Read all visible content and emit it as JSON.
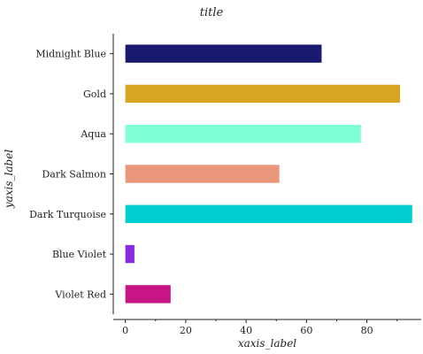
{
  "chart_data": {
    "type": "bar",
    "orientation": "horizontal",
    "title": "title",
    "xlabel": "xaxis_label",
    "ylabel": "yaxis_label",
    "xlim": [
      -4,
      98
    ],
    "xticks": [
      0,
      20,
      40,
      60,
      80
    ],
    "grid": false,
    "categories": [
      "Violet Red",
      "Blue Violet",
      "Dark Turquoise",
      "Dark Salmon",
      "Aqua",
      "Gold",
      "Midnight Blue"
    ],
    "values": [
      15,
      3,
      95,
      51,
      78,
      91,
      65
    ],
    "colors": [
      "#c71585",
      "#8a2be2",
      "#00ced1",
      "#e9967a",
      "#7fffd4",
      "#daa520",
      "#191970"
    ]
  }
}
